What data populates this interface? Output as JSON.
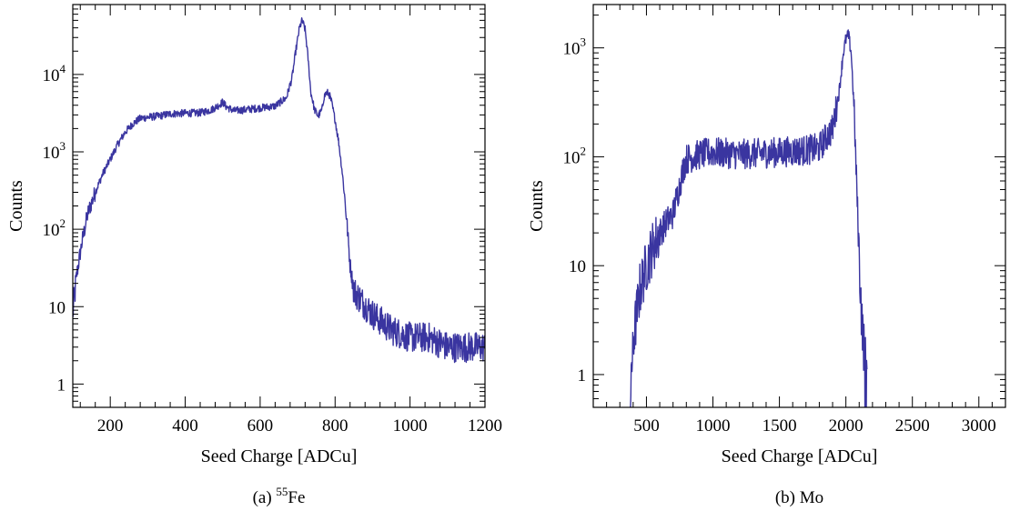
{
  "chart_data": [
    {
      "type": "line",
      "caption_prefix": "(a) ",
      "caption_sup": "55",
      "caption_main": "Fe",
      "xlabel": "Seed Charge [ADCu]",
      "ylabel": "Counts",
      "xlim": [
        100,
        1200
      ],
      "ylim": [
        0.5,
        80000
      ],
      "yscale": "log",
      "xticks": [
        200,
        400,
        600,
        800,
        1000,
        1200
      ],
      "yticks": [
        {
          "value": 1,
          "base": "1",
          "exp": ""
        },
        {
          "value": 10,
          "base": "10",
          "exp": ""
        },
        {
          "value": 100,
          "base": "10",
          "exp": "2"
        },
        {
          "value": 1000,
          "base": "10",
          "exp": "3"
        },
        {
          "value": 10000,
          "base": "10",
          "exp": "4"
        }
      ],
      "color": "#3a35a0",
      "series": [
        {
          "x": [
            100,
            110,
            125,
            140,
            160,
            180,
            200,
            220,
            240,
            260,
            280,
            300,
            330,
            360,
            400,
            440,
            470,
            490,
            500,
            510,
            530,
            560,
            600,
            640,
            670,
            685,
            695,
            705,
            712,
            720,
            728,
            735,
            745,
            755,
            765,
            770,
            775,
            780,
            785,
            790,
            800,
            810,
            820,
            830,
            840,
            850,
            870,
            900,
            950,
            1000,
            1050,
            1100,
            1150,
            1200
          ],
          "y": [
            8,
            25,
            70,
            160,
            300,
            520,
            800,
            1250,
            1800,
            2300,
            2700,
            2800,
            2900,
            3100,
            3150,
            3200,
            3500,
            4000,
            4400,
            3800,
            3400,
            3500,
            3700,
            3900,
            5000,
            9000,
            20000,
            40000,
            50000,
            38000,
            16000,
            6000,
            3500,
            2900,
            3500,
            5000,
            5700,
            5800,
            5400,
            4500,
            2600,
            1300,
            500,
            150,
            35,
            16,
            12,
            8,
            5,
            4,
            4,
            3,
            3,
            3
          ],
          "noise": 0.22
        }
      ]
    },
    {
      "type": "line",
      "caption_prefix": "(b) ",
      "caption_sup": "",
      "caption_main": "Mo",
      "xlabel": "Seed Charge [ADCu]",
      "ylabel": "Counts",
      "xlim": [
        100,
        3200
      ],
      "ylim": [
        0.5,
        2500
      ],
      "yscale": "log",
      "xticks": [
        500,
        1000,
        1500,
        2000,
        2500,
        3000
      ],
      "yticks": [
        {
          "value": 1,
          "base": "1",
          "exp": ""
        },
        {
          "value": 10,
          "base": "10",
          "exp": ""
        },
        {
          "value": 100,
          "base": "10",
          "exp": "2"
        },
        {
          "value": 1000,
          "base": "10",
          "exp": "3"
        }
      ],
      "color": "#3a35a0",
      "series": [
        {
          "x": [
            380,
            400,
            450,
            500,
            550,
            600,
            650,
            700,
            750,
            780,
            800,
            850,
            900,
            1000,
            1200,
            1500,
            1700,
            1800,
            1850,
            1900,
            1950,
            1980,
            2000,
            2020,
            2040,
            2060,
            2080,
            2100,
            2120,
            2140,
            2160
          ],
          "y": [
            0.8,
            2,
            6,
            10,
            15,
            20,
            25,
            30,
            55,
            80,
            95,
            100,
            105,
            110,
            105,
            110,
            115,
            120,
            150,
            180,
            400,
            900,
            1200,
            1300,
            900,
            300,
            60,
            12,
            3,
            1.5,
            1
          ],
          "noise": 0.28
        }
      ]
    }
  ]
}
